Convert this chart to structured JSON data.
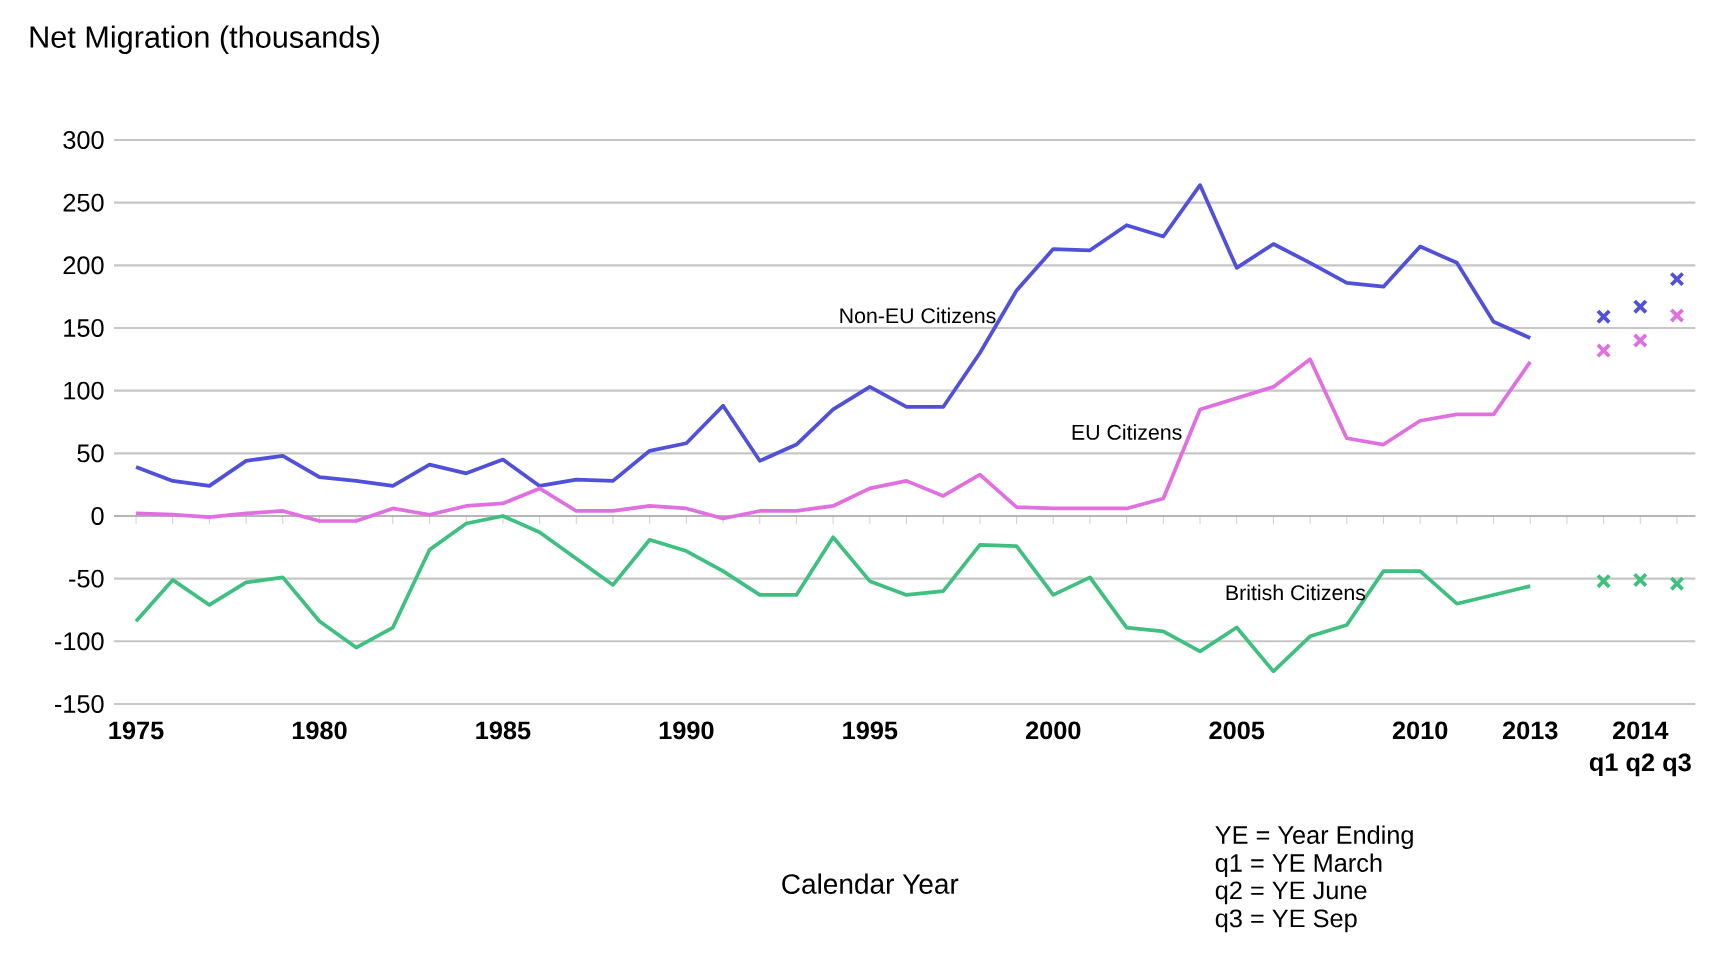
{
  "chart_data": {
    "type": "line",
    "title": "Net Migration (thousands)",
    "categories": [
      "1975",
      null,
      null,
      null,
      null,
      "1980",
      null,
      null,
      null,
      null,
      "1985",
      null,
      null,
      null,
      null,
      "1990",
      null,
      null,
      null,
      null,
      "1995",
      null,
      null,
      null,
      null,
      "2000",
      null,
      null,
      null,
      null,
      "2005",
      null,
      null,
      null,
      null,
      "2010",
      null,
      null,
      "2013",
      null,
      "q1",
      "q2",
      "q3"
    ],
    "series": [
      {
        "name": "Non-EU Citizens",
        "color": "#5050d8",
        "values": [
          39,
          28,
          24,
          44,
          48,
          31,
          28,
          24,
          41,
          34,
          45,
          24,
          29,
          28,
          52,
          58,
          88,
          44,
          57,
          85,
          103,
          87,
          87,
          130,
          180,
          213,
          212,
          232,
          223,
          264,
          198,
          217,
          202,
          186,
          183,
          215,
          202,
          155,
          142,
          null,
          null,
          null,
          null
        ]
      },
      {
        "name": "EU Citizens",
        "color": "#e070e0",
        "values": [
          2,
          1,
          -1,
          2,
          4,
          -4,
          -4,
          6,
          1,
          8,
          10,
          22,
          4,
          4,
          8,
          6,
          -2,
          4,
          4,
          8,
          22,
          28,
          16,
          33,
          7,
          6,
          6,
          6,
          14,
          85,
          94,
          103,
          125,
          62,
          57,
          76,
          81,
          81,
          123,
          null,
          null,
          null,
          null
        ]
      },
      {
        "name": "British Citizens",
        "color": "#40c080",
        "values": [
          -84,
          -51,
          -71,
          -53,
          -49,
          -84,
          -105,
          -89,
          -27,
          -6,
          0,
          -13,
          -34,
          -55,
          -19,
          -28,
          -44,
          -63,
          -63,
          -17,
          -52,
          -63,
          -60,
          -23,
          -24,
          -63,
          -49,
          -89,
          -92,
          -108,
          -89,
          -124,
          -96,
          -87,
          -44,
          -44,
          -70,
          -63,
          -56,
          null,
          null,
          null,
          null
        ]
      },
      {
        "type": "scatter",
        "marker": "cross",
        "color": "#5050d8",
        "values": [
          null,
          null,
          null,
          null,
          null,
          null,
          null,
          null,
          null,
          null,
          null,
          null,
          null,
          null,
          null,
          null,
          null,
          null,
          null,
          null,
          null,
          null,
          null,
          null,
          null,
          null,
          null,
          null,
          null,
          null,
          null,
          null,
          null,
          null,
          null,
          null,
          null,
          null,
          null,
          null,
          159,
          167,
          189
        ]
      },
      {
        "type": "scatter",
        "marker": "cross",
        "color": "#e070e0",
        "values": [
          null,
          null,
          null,
          null,
          null,
          null,
          null,
          null,
          null,
          null,
          null,
          null,
          null,
          null,
          null,
          null,
          null,
          null,
          null,
          null,
          null,
          null,
          null,
          null,
          null,
          null,
          null,
          null,
          null,
          null,
          null,
          null,
          null,
          null,
          null,
          null,
          null,
          null,
          null,
          null,
          132,
          140,
          160
        ]
      },
      {
        "type": "scatter",
        "marker": "cross",
        "color": "#40c080",
        "values": [
          null,
          null,
          null,
          null,
          null,
          null,
          null,
          null,
          null,
          null,
          null,
          null,
          null,
          null,
          null,
          null,
          null,
          null,
          null,
          null,
          null,
          null,
          null,
          null,
          null,
          null,
          null,
          null,
          null,
          null,
          null,
          null,
          null,
          null,
          null,
          null,
          null,
          null,
          null,
          null,
          -52,
          -51,
          -54
        ]
      }
    ],
    "ylim": [
      -150,
      300
    ],
    "yticks": [
      -150,
      -100,
      -50,
      0,
      50,
      100,
      150,
      200,
      250,
      300
    ],
    "grid": "y",
    "annotations": [
      "2014",
      "Calendar Year",
      "YE = Year Ending",
      "q1 = YE March",
      "q2 =  YE June",
      "q3 = YE Sep"
    ]
  }
}
